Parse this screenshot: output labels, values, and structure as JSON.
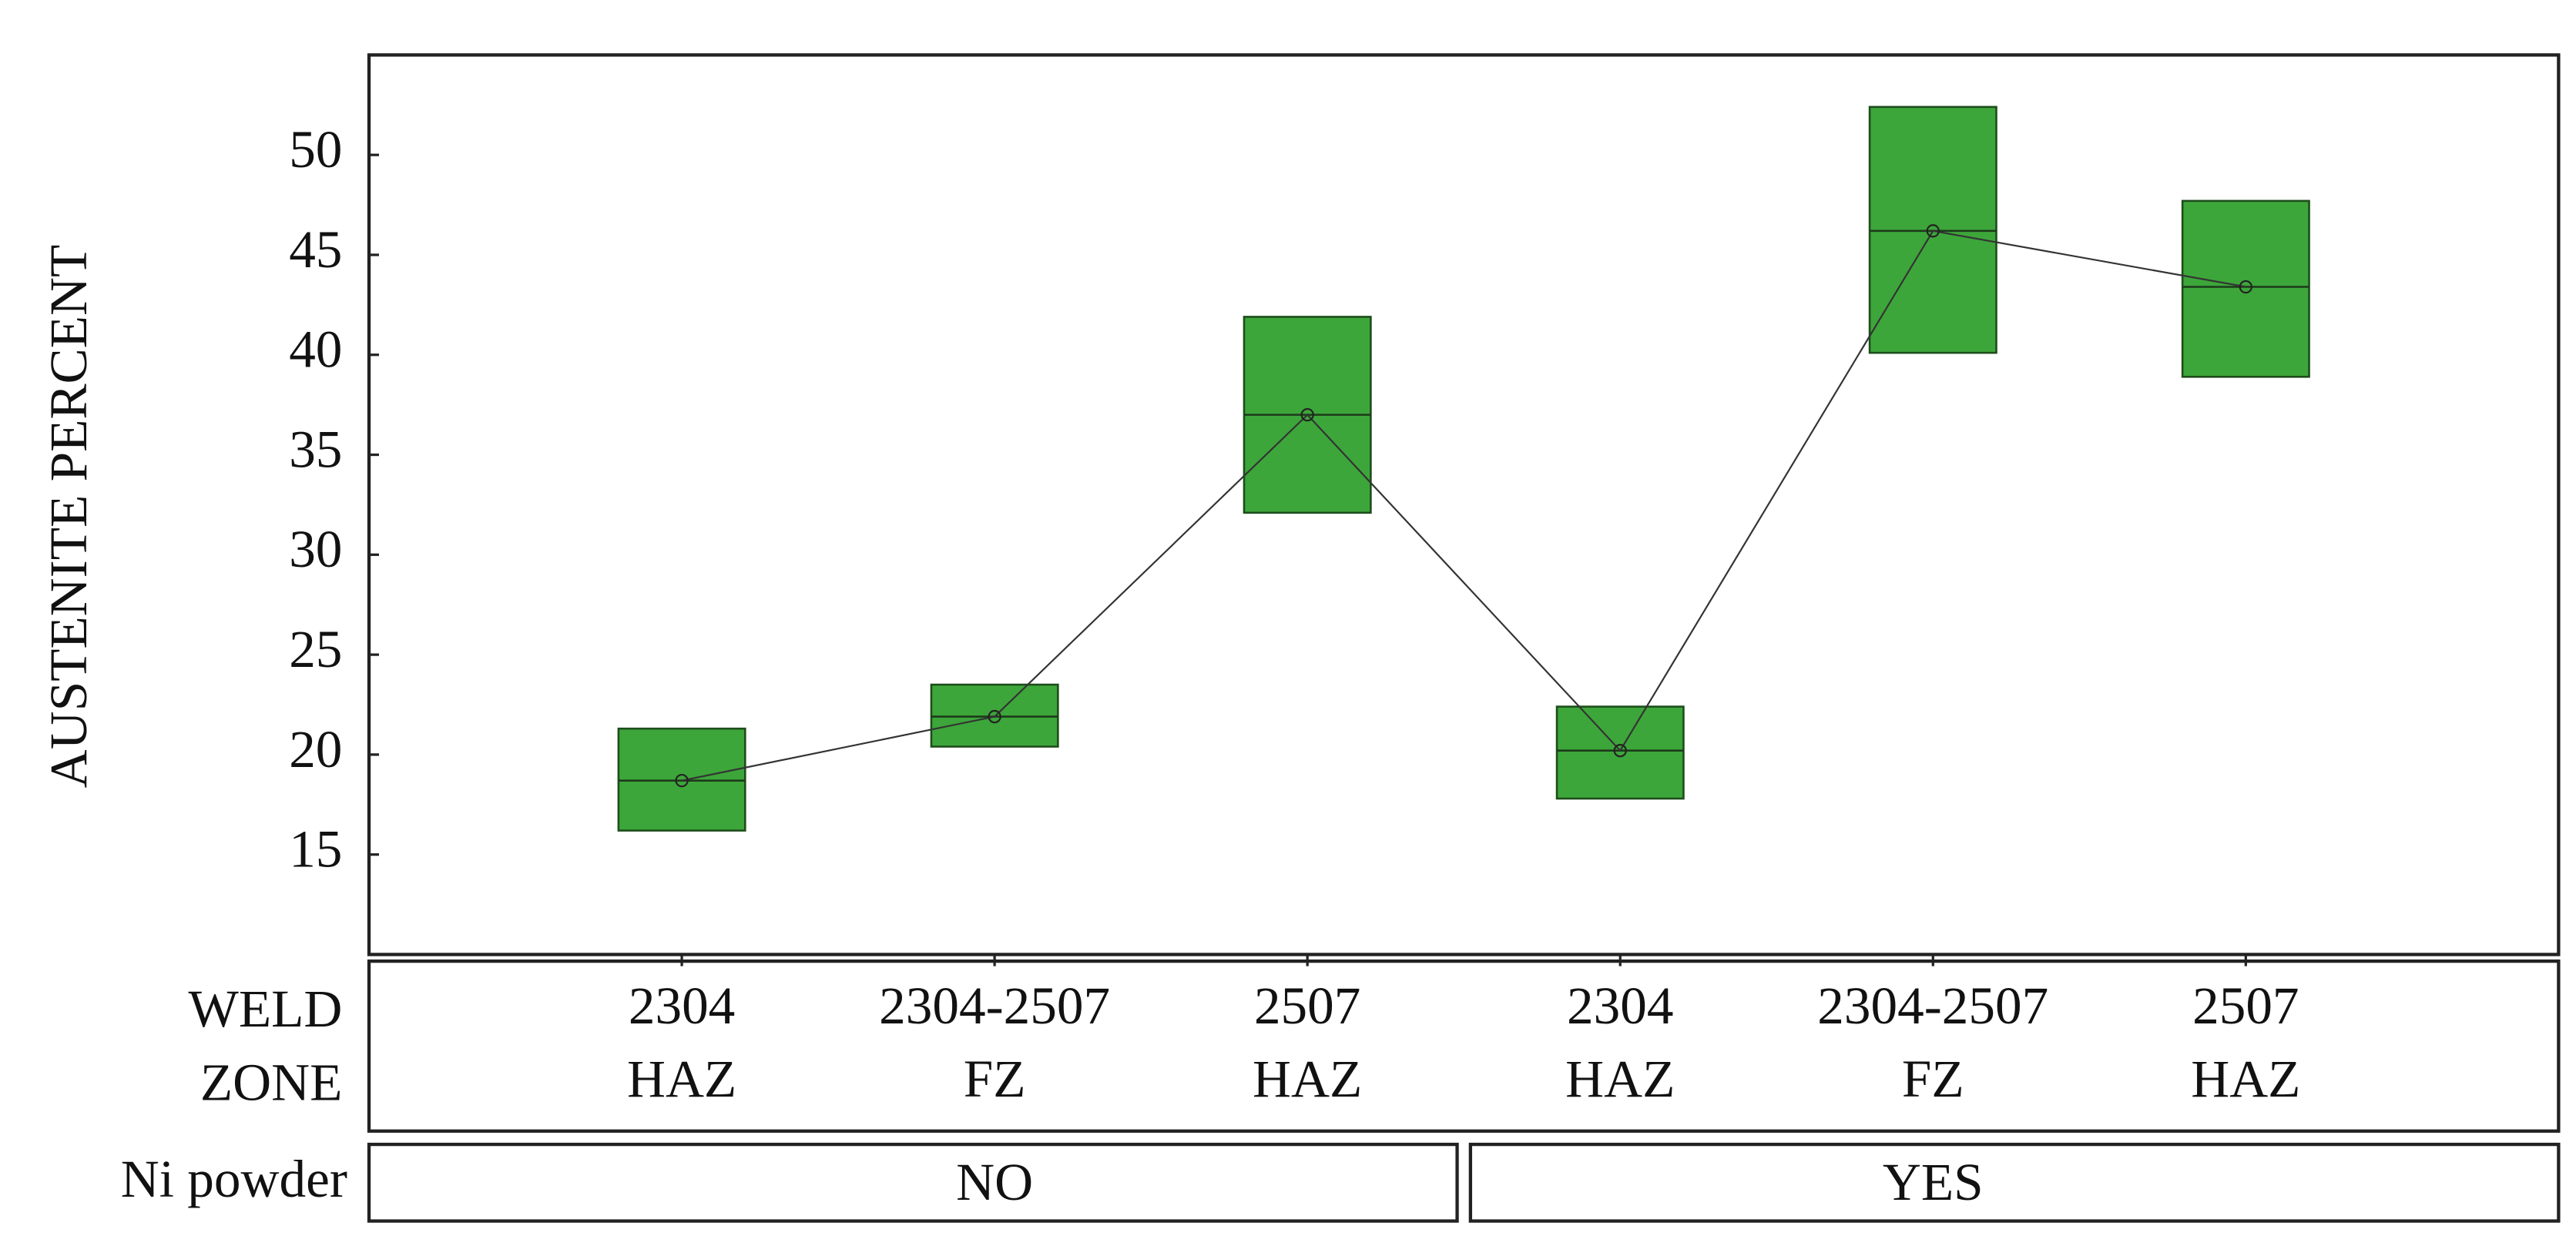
{
  "chart_data": {
    "type": "box",
    "y_label": "AUSTENITE PERCENT",
    "ylim": [
      10,
      55
    ],
    "yticks": [
      15,
      20,
      25,
      30,
      35,
      40,
      45,
      50
    ],
    "categories": [
      {
        "grade": "2304",
        "zone": "HAZ"
      },
      {
        "grade": "2304-2507",
        "zone": "FZ"
      },
      {
        "grade": "2507",
        "zone": "HAZ"
      },
      {
        "grade": "2304",
        "zone": "HAZ"
      },
      {
        "grade": "2304-2507",
        "zone": "FZ"
      },
      {
        "grade": "2507",
        "zone": "HAZ"
      }
    ],
    "category_label": [
      "WELD",
      "ZONE"
    ],
    "group_label": "Ni powder",
    "groups": [
      "NO",
      "YES"
    ],
    "color": "#3da63a",
    "mean": [
      18.7,
      21.9,
      37.0,
      20.2,
      46.2,
      43.4
    ],
    "low": [
      16.2,
      20.4,
      32.1,
      17.8,
      40.1,
      38.9
    ],
    "high": [
      21.3,
      23.5,
      41.9,
      22.4,
      52.4,
      47.7
    ]
  }
}
